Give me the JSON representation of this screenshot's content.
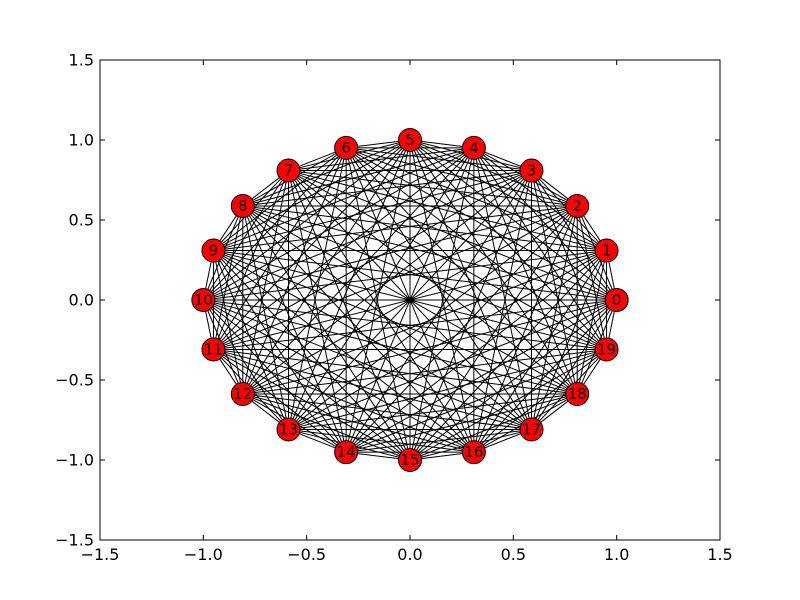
{
  "chart_data": {
    "type": "graph",
    "graph_kind": "complete",
    "layout": "circular",
    "node_count": 20,
    "node_color": "#ff0000",
    "edge_color": "#000000",
    "nodes": [
      "0",
      "1",
      "2",
      "3",
      "4",
      "5",
      "6",
      "7",
      "8",
      "9",
      "10",
      "11",
      "12",
      "13",
      "14",
      "15",
      "16",
      "17",
      "18",
      "19"
    ],
    "xlim": [
      -1.5,
      1.5
    ],
    "ylim": [
      -1.5,
      1.5
    ],
    "x_ticks": [
      -1.5,
      -1.0,
      -0.5,
      0.0,
      0.5,
      1.0,
      1.5
    ],
    "y_ticks": [
      -1.5,
      -1.0,
      -0.5,
      0.0,
      0.5,
      1.0,
      1.5
    ],
    "x_tick_labels": [
      "−1.5",
      "−1.0",
      "−0.5",
      "0.0",
      "0.5",
      "1.0",
      "1.5"
    ],
    "y_tick_labels": [
      "−1.5",
      "−1.0",
      "−0.5",
      "0.0",
      "0.5",
      "1.0",
      "1.5"
    ],
    "grid": false,
    "title": "",
    "xlabel": "",
    "ylabel": ""
  }
}
